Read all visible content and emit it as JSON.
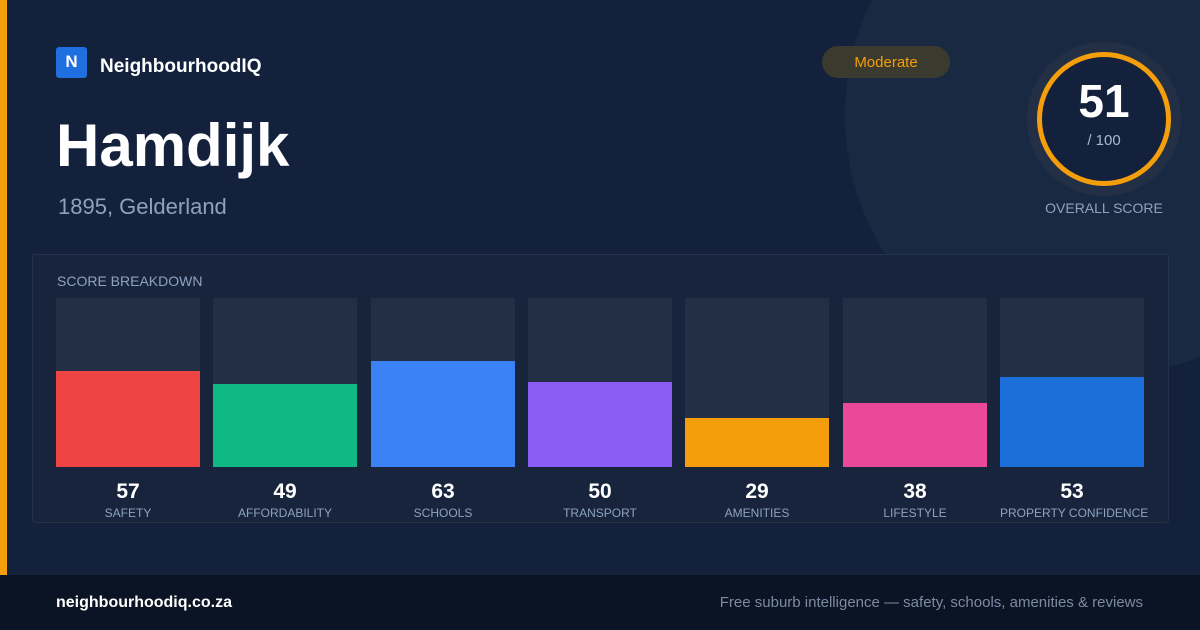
{
  "brand": {
    "mark": "N",
    "name": "NeighbourhoodIQ"
  },
  "suburb": {
    "name": "Hamdijk",
    "location": "1895, Gelderland"
  },
  "rating": {
    "label": "Moderate"
  },
  "overall": {
    "score": "51",
    "out_of": "/ 100",
    "label": "OVERALL SCORE"
  },
  "breakdown": {
    "title": "SCORE BREAKDOWN",
    "items": [
      {
        "label": "SAFETY",
        "value": 57,
        "color": "#ef4444"
      },
      {
        "label": "AFFORDABILITY",
        "value": 49,
        "color": "#10b981"
      },
      {
        "label": "SCHOOLS",
        "value": 63,
        "color": "#3b82f6"
      },
      {
        "label": "TRANSPORT",
        "value": 50,
        "color": "#8b5cf6"
      },
      {
        "label": "AMENITIES",
        "value": 29,
        "color": "#f59e0b"
      },
      {
        "label": "LIFESTYLE",
        "value": 38,
        "color": "#ec4899"
      },
      {
        "label": "PROPERTY CONFIDENCE",
        "value": 53,
        "color": "#1d6fd8"
      }
    ]
  },
  "footer": {
    "url": "neighbourhoodiq.co.za",
    "tagline": "Free suburb intelligence — safety, schools, amenities & reviews"
  },
  "colors": {
    "background": "#13213d",
    "accent": "#f59e0b",
    "brand": "#1f6fe0",
    "footer": "#0b1424"
  }
}
